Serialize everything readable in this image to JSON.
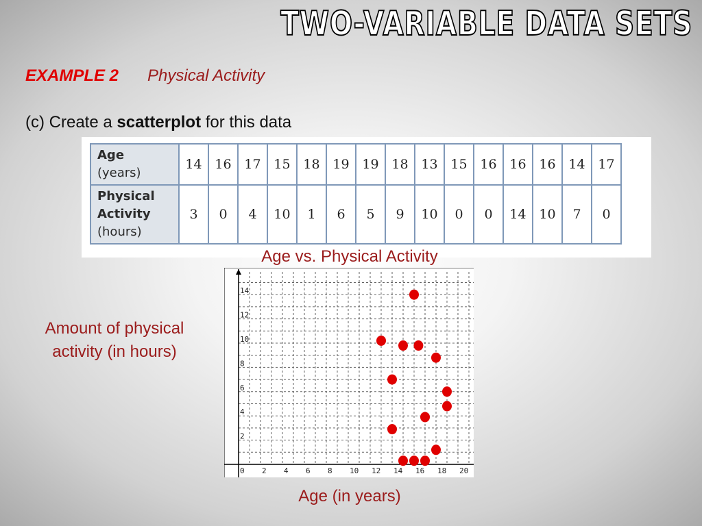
{
  "slide": {
    "title": "TWO-VARIABLE DATA SETS",
    "example_tag": "EXAMPLE 2",
    "example_topic": "Physical Activity",
    "instruction_pre": "(c) Create a ",
    "instruction_bold": "scatterplot",
    "instruction_post": " for this data"
  },
  "table": {
    "row1_head_line1": "Age",
    "row1_head_line2": "(years)",
    "row2_head_line1": "Physical",
    "row2_head_line2": "Activity",
    "row2_head_line3": "(hours)",
    "ages": [
      "14",
      "16",
      "17",
      "15",
      "18",
      "19",
      "19",
      "18",
      "13",
      "15",
      "16",
      "16",
      "16",
      "14",
      "17"
    ],
    "activity": [
      "3",
      "0",
      "4",
      "10",
      "1",
      "6",
      "5",
      "9",
      "10",
      "0",
      "0",
      "14",
      "10",
      "7",
      "0"
    ]
  },
  "chart_data": {
    "type": "scatter",
    "title": "Age vs. Physical Activity",
    "xlabel": "Age (in years)",
    "ylabel": "Amount of physical activity (in hours)",
    "xlim": [
      0,
      21
    ],
    "ylim": [
      0,
      15
    ],
    "x_ticks": [
      "0",
      "2",
      "4",
      "6",
      "8",
      "10",
      "12",
      "14",
      "16",
      "18",
      "20"
    ],
    "y_ticks": [
      "2",
      "4",
      "6",
      "8",
      "10",
      "12",
      "14"
    ],
    "grid": true,
    "point_color": "#e00000",
    "points": [
      {
        "x": 16,
        "y": 14
      },
      {
        "x": 13,
        "y": 10.2
      },
      {
        "x": 15,
        "y": 9.8
      },
      {
        "x": 16.4,
        "y": 9.8
      },
      {
        "x": 18,
        "y": 8.8
      },
      {
        "x": 14,
        "y": 7
      },
      {
        "x": 19,
        "y": 6
      },
      {
        "x": 19,
        "y": 4.8
      },
      {
        "x": 17,
        "y": 3.9
      },
      {
        "x": 14,
        "y": 2.9
      },
      {
        "x": 18,
        "y": 1.2
      },
      {
        "x": 15,
        "y": 0.3
      },
      {
        "x": 16,
        "y": 0.3
      },
      {
        "x": 17,
        "y": 0.3
      }
    ]
  }
}
